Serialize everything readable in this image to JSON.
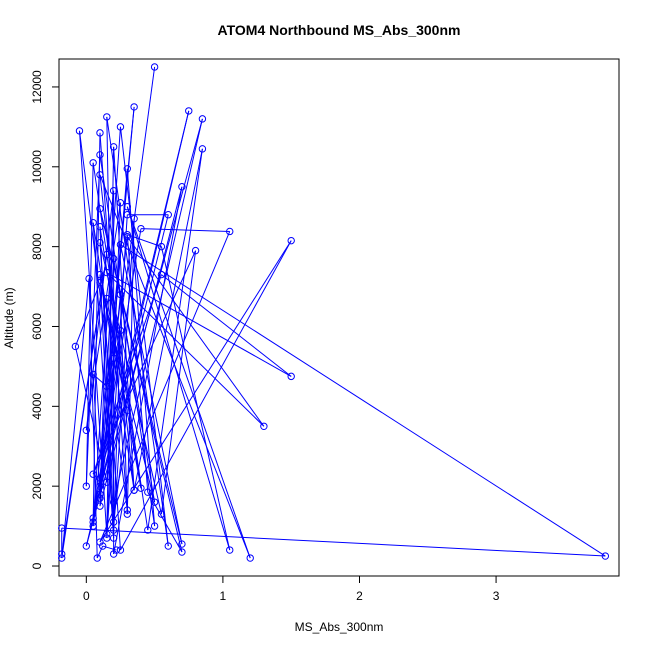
{
  "chart_data": {
    "type": "line",
    "title": "ATOM4 Northbound MS_Abs_300nm",
    "xlabel": "MS_Abs_300nm",
    "ylabel": "Altitude (m)",
    "xlim": [
      -0.2,
      3.9
    ],
    "ylim": [
      -250,
      12700
    ],
    "x_ticks": [
      0,
      1,
      2,
      3
    ],
    "y_ticks": [
      0,
      2000,
      4000,
      6000,
      8000,
      10000,
      12000
    ],
    "x_tick_labels": [
      "0",
      "1",
      "2",
      "3"
    ],
    "y_tick_labels": [
      "0",
      "2000",
      "4000",
      "6000",
      "8000",
      "10000",
      "12000"
    ],
    "grid": false,
    "series": [
      {
        "color": "#0000ff",
        "marker": "open-circle",
        "points": [
          [
            0.5,
            12500
          ],
          [
            0.05,
            1000
          ],
          [
            0.35,
            11500
          ],
          [
            0.1,
            2200
          ],
          [
            0.75,
            11400
          ],
          [
            0.0,
            500
          ],
          [
            0.85,
            11200
          ],
          [
            0.2,
            1600
          ],
          [
            0.15,
            11250
          ],
          [
            0.6,
            500
          ],
          [
            0.25,
            11000
          ],
          [
            0.05,
            1100
          ],
          [
            0.1,
            10850
          ],
          [
            0.3,
            1400
          ],
          [
            -0.05,
            10900
          ],
          [
            0.15,
            800
          ],
          [
            0.2,
            10500
          ],
          [
            0.35,
            1900
          ],
          [
            0.85,
            10450
          ],
          [
            0.45,
            900
          ],
          [
            0.05,
            10100
          ],
          [
            0.0,
            2000
          ],
          [
            0.1,
            10300
          ],
          [
            0.5,
            1000
          ],
          [
            0.3,
            9950
          ],
          [
            0.1,
            1500
          ],
          [
            0.7,
            9500
          ],
          [
            0.2,
            300
          ],
          [
            0.2,
            9400
          ],
          [
            0.0,
            3400
          ],
          [
            0.25,
            9100
          ],
          [
            0.15,
            700
          ],
          [
            0.3,
            8800
          ],
          [
            0.6,
            8800
          ],
          [
            0.05,
            1200
          ],
          [
            0.4,
            8450
          ],
          [
            1.05,
            8380
          ],
          [
            0.1,
            600
          ],
          [
            1.5,
            8150
          ],
          [
            0.25,
            400
          ],
          [
            0.1,
            8100
          ],
          [
            0.55,
            1300
          ],
          [
            0.8,
            7900
          ],
          [
            0.05,
            2300
          ],
          [
            0.55,
            7300
          ],
          [
            1.5,
            4750
          ],
          [
            0.15,
            7350
          ],
          [
            1.3,
            3500
          ],
          [
            0.3,
            8250
          ],
          [
            0.1,
            2000
          ],
          [
            0.2,
            7700
          ],
          [
            0.5,
            1600
          ],
          [
            0.1,
            7100
          ],
          [
            -0.08,
            5500
          ],
          [
            0.15,
            2100
          ],
          [
            0.2,
            5200
          ],
          [
            0.15,
            4500
          ],
          [
            0.05,
            4800
          ],
          [
            0.1,
            1800
          ],
          [
            0.25,
            6800
          ],
          [
            0.3,
            1300
          ],
          [
            0.35,
            8700
          ],
          [
            0.2,
            900
          ],
          [
            0.25,
            5900
          ],
          [
            0.1,
            1700
          ],
          [
            0.15,
            6700
          ],
          [
            0.4,
            1950
          ],
          [
            0.1,
            8500
          ],
          [
            0.2,
            1100
          ],
          [
            0.3,
            3900
          ],
          [
            0.1,
            7300
          ],
          [
            0.2,
            700
          ],
          [
            0.05,
            8600
          ],
          [
            0.35,
            1900
          ],
          [
            0.1,
            9800
          ],
          [
            1.2,
            200
          ],
          [
            0.3,
            9000
          ],
          [
            1.05,
            400
          ],
          [
            0.55,
            8000
          ],
          [
            0.3,
            8300
          ],
          [
            0.45,
            1850
          ],
          [
            0.7,
            350
          ],
          [
            0.1,
            8950
          ],
          [
            0.7,
            550
          ],
          [
            0.25,
            8050
          ],
          [
            3.8,
            250
          ],
          [
            -0.18,
            950
          ],
          [
            -0.18,
            300
          ],
          [
            0.15,
            7800
          ],
          [
            -0.18,
            200
          ],
          [
            0.02,
            7200
          ],
          [
            0.08,
            200
          ],
          [
            0.12,
            500
          ],
          [
            0.22,
            400
          ]
        ]
      }
    ]
  }
}
